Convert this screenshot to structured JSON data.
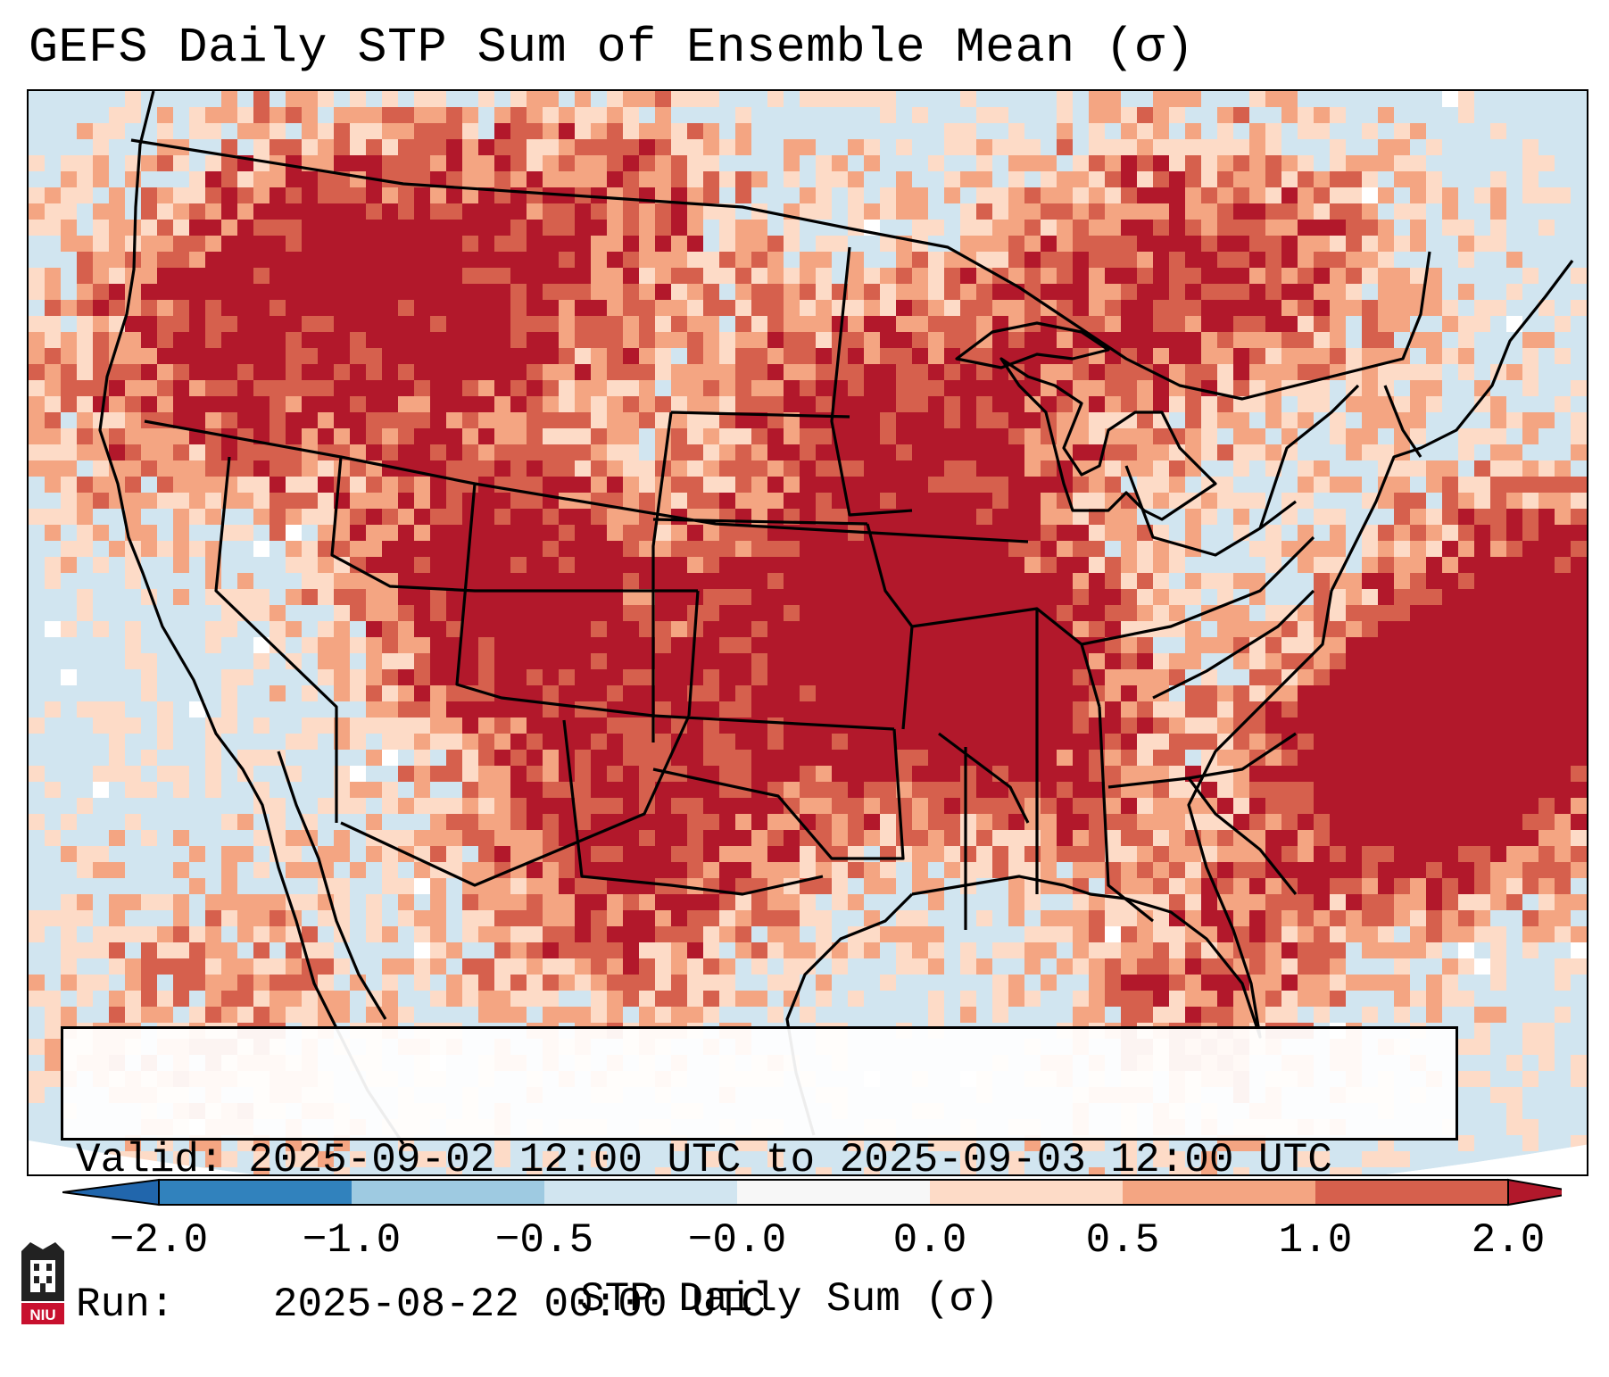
{
  "title": "GEFS Daily STP Sum of Ensemble Mean (σ)",
  "info": {
    "valid_label": "Valid:",
    "valid_text": "2025-09-02 12:00 UTC to 2025-09-03 12:00 UTC",
    "run_label": "Run:",
    "run_text": "2025-08-22 00:00 UTC"
  },
  "colorbar": {
    "label": "STP Daily Sum (σ)",
    "ticks": [
      "−2.0",
      "−1.0",
      "−0.5",
      "−0.0",
      "0.0",
      "0.5",
      "1.0",
      "2.0"
    ],
    "bin_colors": [
      "#3182bd",
      "#6baed6",
      "#9ecae1",
      "#d1e5f0",
      "#f5f5f5",
      "#fddbc7",
      "#f4a582",
      "#d6604d",
      "#b2182b"
    ],
    "under_color": "#2166ac",
    "over_color": "#b2182b"
  },
  "colors": {
    "background_field": "#d1e5f0",
    "land_outline": "#000000",
    "outside_domain": "#ffffff"
  },
  "logo": {
    "text": "NIU"
  }
}
